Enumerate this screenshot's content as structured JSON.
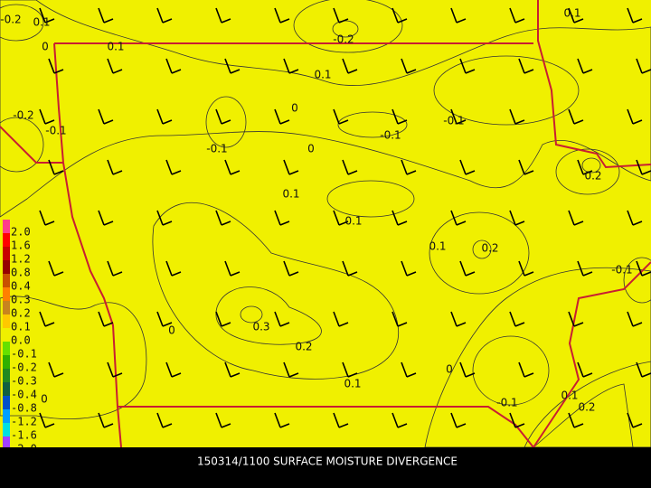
{
  "footer": {
    "title": "150314/1100 SURFACE MOISTURE DIVERGENCE"
  },
  "legend": {
    "labels": [
      "2.0",
      "1.6",
      "1.2",
      "0.8",
      "0.4",
      "0.3",
      "0.2",
      "0.1",
      "0.0",
      "-0.1",
      "-0.2",
      "-0.3",
      "-0.4",
      "-0.8",
      "-1.2",
      "-1.6",
      "-2.0"
    ]
  },
  "contour_labels": [
    "-0.2",
    "0.1",
    "0",
    "0.1",
    "-0.2",
    "0.1",
    "0.1",
    "0",
    "-0.2",
    "-0.1",
    "-0.1",
    "0",
    "-0.1",
    "-0.1",
    "0.2",
    "0.1",
    "0.1",
    "0.1",
    "0.2",
    "-0.1",
    "0",
    "0.3",
    "0.2",
    "0",
    "0.1",
    "0.1",
    "-0.1",
    "0.2",
    "0"
  ]
}
